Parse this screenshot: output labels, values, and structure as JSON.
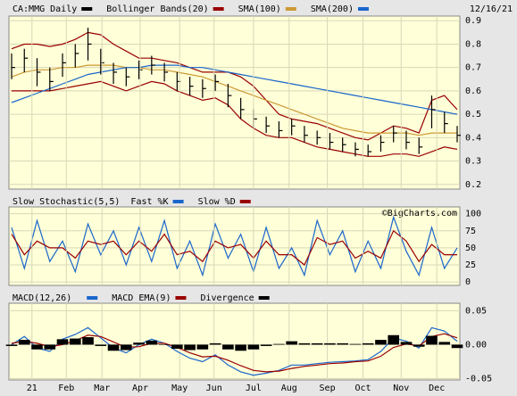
{
  "chart_data": [
    {
      "type": "ohlc",
      "date": "12/16/21",
      "xlim": [
        0,
        35
      ],
      "ylim": [
        0.18,
        0.92
      ],
      "yticks": [
        0.2,
        0.3,
        0.4,
        0.5,
        0.6,
        0.7,
        0.8,
        0.9
      ],
      "series": [
        {
          "name": "CA:MMG Daily",
          "color": "#000000",
          "kind": "ohlc",
          "values": [
            0.7,
            0.74,
            0.68,
            0.64,
            0.72,
            0.76,
            0.8,
            0.72,
            0.68,
            0.66,
            0.69,
            0.71,
            0.68,
            0.64,
            0.62,
            0.61,
            0.64,
            0.58,
            0.52,
            0.48,
            0.45,
            0.43,
            0.45,
            0.41,
            0.4,
            0.38,
            0.37,
            0.35,
            0.34,
            0.38,
            0.42,
            0.38,
            0.36,
            0.52,
            0.46,
            0.41
          ],
          "high": [
            0.76,
            0.78,
            0.74,
            0.7,
            0.76,
            0.8,
            0.87,
            0.78,
            0.72,
            0.7,
            0.73,
            0.75,
            0.72,
            0.68,
            0.66,
            0.65,
            0.67,
            0.63,
            0.57,
            0.52,
            0.49,
            0.47,
            0.48,
            0.45,
            0.43,
            0.42,
            0.4,
            0.38,
            0.37,
            0.41,
            0.45,
            0.43,
            0.4,
            0.58,
            0.51,
            0.45
          ],
          "low": [
            0.65,
            0.68,
            0.62,
            0.6,
            0.66,
            0.7,
            0.73,
            0.67,
            0.63,
            0.62,
            0.65,
            0.67,
            0.64,
            0.6,
            0.58,
            0.57,
            0.6,
            0.53,
            0.48,
            0.44,
            0.42,
            0.4,
            0.41,
            0.38,
            0.37,
            0.35,
            0.34,
            0.32,
            0.32,
            0.34,
            0.38,
            0.35,
            0.33,
            0.44,
            0.42,
            0.38
          ]
        },
        {
          "name": "Bollinger Bands(20)",
          "color": "#990000",
          "kind": "band",
          "values": [
            0.78,
            0.8,
            0.8,
            0.79,
            0.8,
            0.82,
            0.85,
            0.84,
            0.8,
            0.77,
            0.74,
            0.74,
            0.73,
            0.72,
            0.7,
            0.68,
            0.68,
            0.68,
            0.66,
            0.62,
            0.56,
            0.5,
            0.48,
            0.47,
            0.46,
            0.44,
            0.42,
            0.4,
            0.39,
            0.42,
            0.45,
            0.44,
            0.42,
            0.56,
            0.58,
            0.52
          ],
          "lower": [
            0.6,
            0.6,
            0.6,
            0.6,
            0.61,
            0.62,
            0.63,
            0.64,
            0.62,
            0.6,
            0.62,
            0.64,
            0.63,
            0.6,
            0.58,
            0.56,
            0.57,
            0.54,
            0.48,
            0.44,
            0.41,
            0.4,
            0.4,
            0.38,
            0.36,
            0.35,
            0.34,
            0.33,
            0.32,
            0.32,
            0.33,
            0.33,
            0.32,
            0.34,
            0.36,
            0.35
          ]
        },
        {
          "name": "SMA(100)",
          "color": "#cc9933",
          "kind": "line",
          "values": [
            0.66,
            0.68,
            0.69,
            0.69,
            0.7,
            0.7,
            0.71,
            0.71,
            0.71,
            0.7,
            0.7,
            0.69,
            0.69,
            0.68,
            0.67,
            0.66,
            0.64,
            0.62,
            0.6,
            0.58,
            0.56,
            0.54,
            0.52,
            0.5,
            0.48,
            0.46,
            0.44,
            0.43,
            0.42,
            0.42,
            0.42,
            0.42,
            0.41,
            0.42,
            0.42,
            0.42
          ]
        },
        {
          "name": "SMA(200)",
          "color": "#1a66cc",
          "kind": "line",
          "values": [
            0.55,
            0.57,
            0.59,
            0.61,
            0.63,
            0.65,
            0.67,
            0.68,
            0.69,
            0.7,
            0.7,
            0.71,
            0.71,
            0.71,
            0.7,
            0.7,
            0.69,
            0.68,
            0.67,
            0.66,
            0.65,
            0.64,
            0.63,
            0.62,
            0.61,
            0.6,
            0.59,
            0.58,
            0.57,
            0.56,
            0.55,
            0.54,
            0.53,
            0.52,
            0.51,
            0.5
          ]
        }
      ]
    },
    {
      "type": "line",
      "title": "Slow Stochastic(5,5)",
      "credit": "©BigCharts.com",
      "xlim": [
        0,
        35
      ],
      "ylim": [
        -5,
        110
      ],
      "yticks": [
        0,
        25,
        50,
        75,
        100
      ],
      "series": [
        {
          "name": "Fast %K",
          "color": "#1a66cc",
          "kind": "line",
          "values": [
            80,
            20,
            90,
            30,
            60,
            15,
            85,
            40,
            75,
            25,
            80,
            30,
            90,
            20,
            60,
            10,
            85,
            35,
            70,
            15,
            80,
            20,
            50,
            10,
            90,
            40,
            75,
            15,
            60,
            20,
            95,
            45,
            10,
            80,
            20,
            50
          ]
        },
        {
          "name": "Slow %D",
          "color": "#990000",
          "kind": "line",
          "values": [
            70,
            40,
            60,
            50,
            50,
            35,
            60,
            55,
            60,
            40,
            60,
            45,
            70,
            40,
            45,
            30,
            60,
            50,
            55,
            35,
            60,
            40,
            40,
            25,
            65,
            55,
            60,
            35,
            45,
            35,
            75,
            60,
            30,
            55,
            40,
            40
          ]
        }
      ]
    },
    {
      "type": "line",
      "title": "MACD(12,26)",
      "xlim": [
        0,
        35
      ],
      "ylim": [
        -0.052,
        0.061
      ],
      "yticks": [
        -0.05,
        {
          "value": 0,
          "label": "0.00"
        },
        0.05
      ],
      "xticks": [
        {
          "value": 1.6,
          "label": "21"
        },
        {
          "value": 4.3,
          "label": "Feb"
        },
        {
          "value": 7.1,
          "label": "Mar"
        },
        {
          "value": 10.1,
          "label": "Apr"
        },
        {
          "value": 13.2,
          "label": "May"
        },
        {
          "value": 15.9,
          "label": "Jun"
        },
        {
          "value": 19.0,
          "label": "Jul"
        },
        {
          "value": 21.8,
          "label": "Aug"
        },
        {
          "value": 24.8,
          "label": "Sep"
        },
        {
          "value": 27.6,
          "label": "Oct"
        },
        {
          "value": 30.6,
          "label": "Nov"
        },
        {
          "value": 33.4,
          "label": "Dec"
        }
      ],
      "series": [
        {
          "name": "MACD(12,26)",
          "color": "#1a66cc",
          "kind": "line",
          "values": [
            0.0,
            0.012,
            -0.005,
            -0.01,
            0.008,
            0.015,
            0.025,
            0.01,
            -0.005,
            -0.012,
            0.0,
            0.008,
            0.002,
            -0.01,
            -0.02,
            -0.025,
            -0.015,
            -0.03,
            -0.04,
            -0.045,
            -0.042,
            -0.038,
            -0.03,
            -0.03,
            -0.028,
            -0.026,
            -0.025,
            -0.024,
            -0.022,
            -0.01,
            0.01,
            0.005,
            -0.005,
            0.025,
            0.02,
            0.005
          ]
        },
        {
          "name": "MACD EMA(9)",
          "color": "#990000",
          "kind": "line",
          "values": [
            0.002,
            0.005,
            0.002,
            -0.003,
            0.0,
            0.006,
            0.014,
            0.012,
            0.004,
            -0.004,
            -0.003,
            0.002,
            0.002,
            -0.004,
            -0.012,
            -0.018,
            -0.017,
            -0.023,
            -0.031,
            -0.038,
            -0.04,
            -0.039,
            -0.035,
            -0.032,
            -0.03,
            -0.028,
            -0.027,
            -0.025,
            -0.024,
            -0.017,
            -0.004,
            0.001,
            -0.002,
            0.012,
            0.016,
            0.01
          ]
        },
        {
          "name": "Divergence",
          "color": "#000000",
          "kind": "bar",
          "values": [
            -0.002,
            0.007,
            -0.007,
            -0.007,
            0.008,
            0.009,
            0.011,
            -0.002,
            -0.009,
            -0.008,
            0.003,
            0.006,
            0.0,
            -0.006,
            -0.008,
            -0.007,
            0.002,
            -0.007,
            -0.009,
            -0.007,
            -0.002,
            0.001,
            0.005,
            0.002,
            0.002,
            0.002,
            0.002,
            0.001,
            0.002,
            0.007,
            0.014,
            0.004,
            -0.003,
            0.013,
            0.004,
            -0.005
          ]
        }
      ]
    }
  ]
}
